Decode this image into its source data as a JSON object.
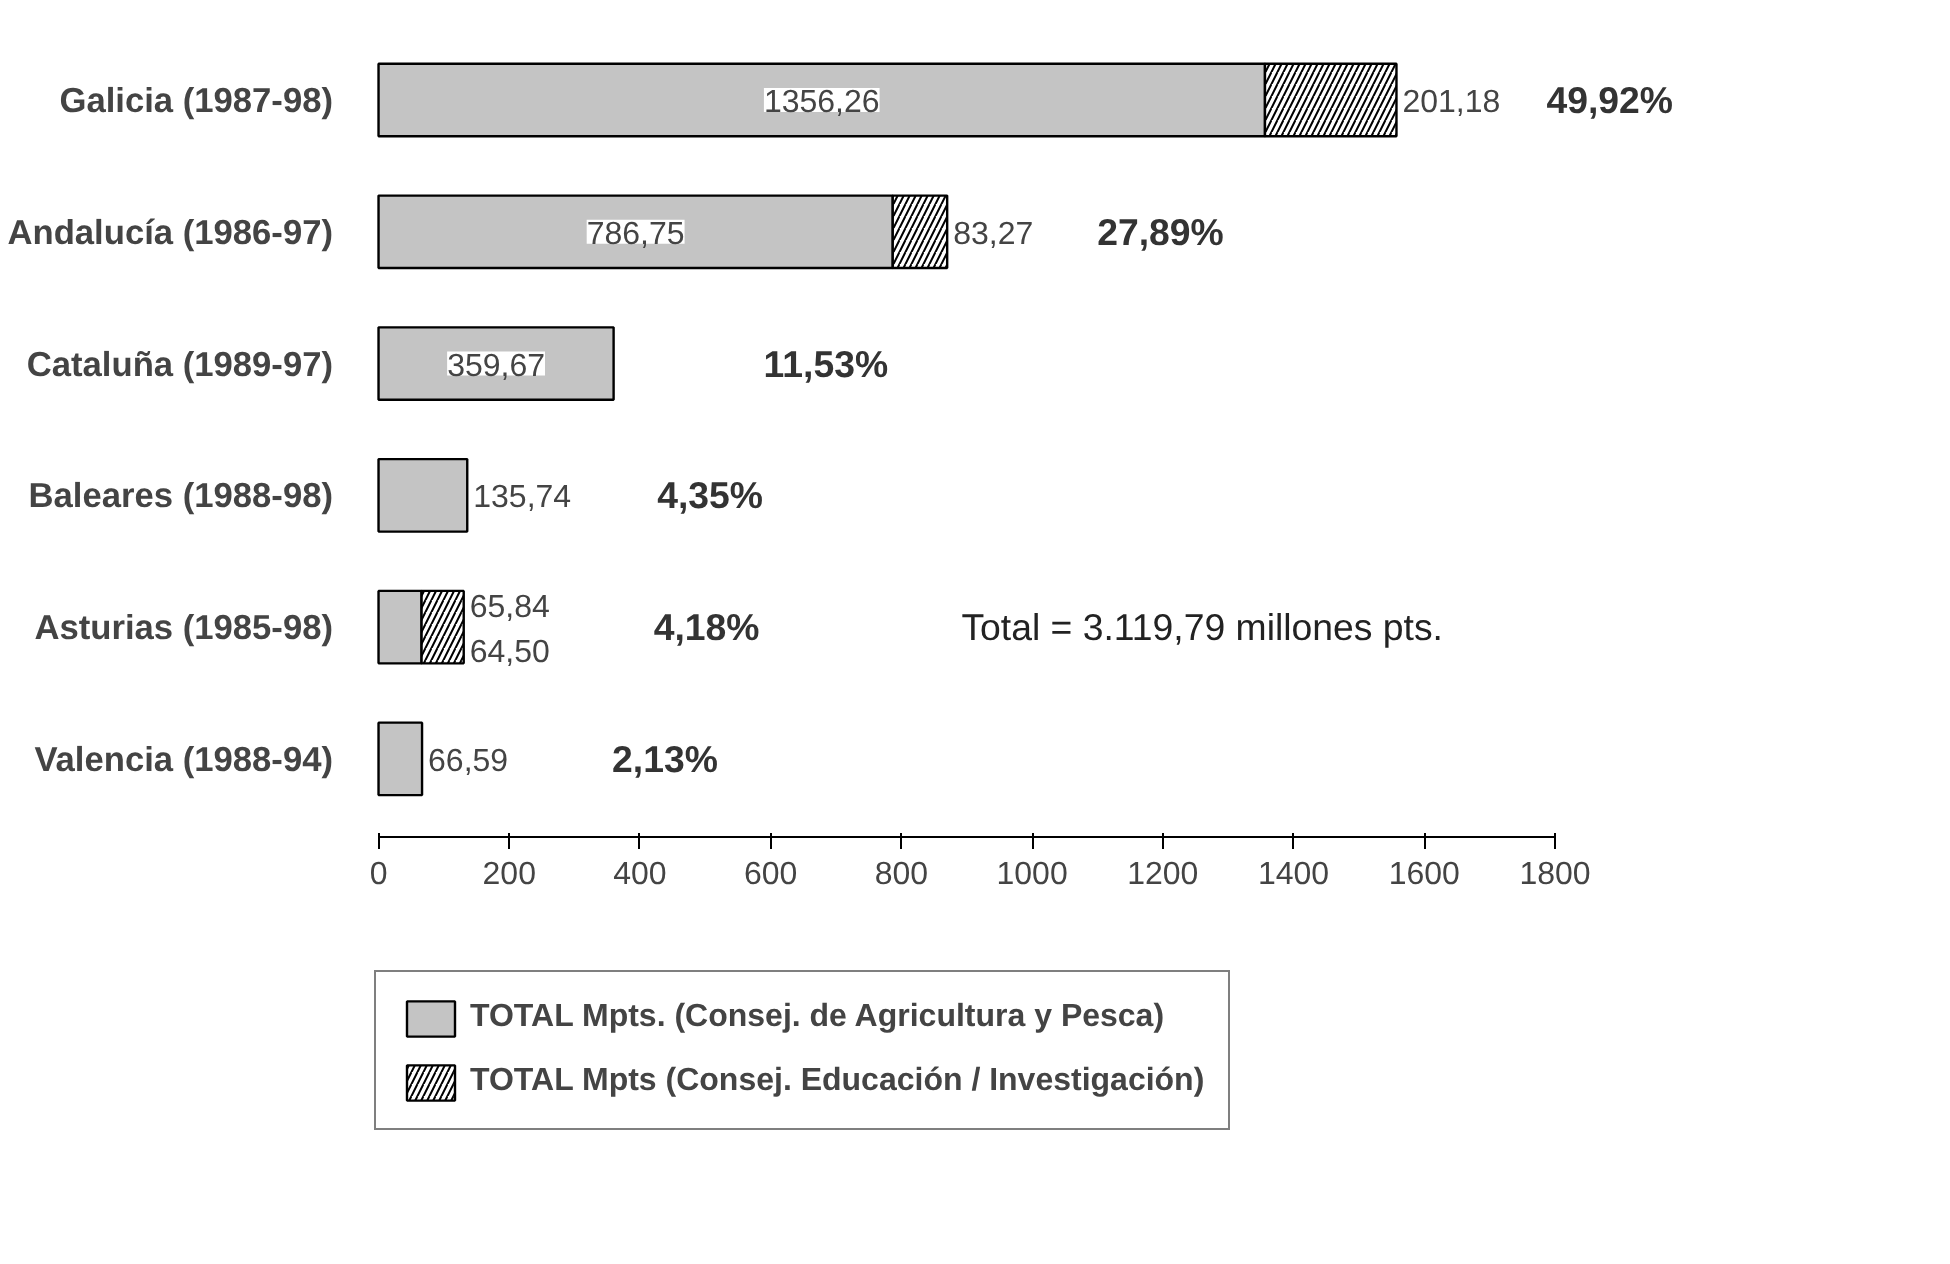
{
  "chart_data": {
    "type": "bar",
    "orientation": "horizontal",
    "stacked": true,
    "categories": [
      "Galicia (1987-98)",
      "Andalucía (1986-97)",
      "Cataluña (1989-97)",
      "Baleares (1988-98)",
      "Asturias (1985-98)",
      "Valencia (1988-94)"
    ],
    "series": [
      {
        "name": "TOTAL Mpts. (Consej. de Agricultura y Pesca)",
        "color": "#c4c4c4",
        "values": [
          1356.26,
          786.75,
          359.67,
          135.74,
          65.84,
          66.59
        ],
        "value_labels": [
          "1356,26",
          "786,75",
          "359,67",
          "135,74",
          "65,84",
          "66,59"
        ]
      },
      {
        "name": "TOTAL Mpts (Consej. Educación / Investigación)",
        "color": "#ffffff",
        "values": [
          201.18,
          83.27,
          null,
          null,
          64.5,
          null
        ],
        "value_labels": [
          "201,18",
          "83,27",
          null,
          null,
          "64,50",
          null
        ]
      }
    ],
    "xlim": [
      0,
      1800
    ],
    "xticks": [
      0,
      200,
      400,
      600,
      800,
      1000,
      1200,
      1400,
      1600,
      1800
    ],
    "grid": false,
    "legend": "bottom",
    "annotations": [
      "49,92%",
      "27,89%",
      "11,53%",
      "4,35%",
      "4,18%",
      "2,13%",
      "Total = 3.119,79 millones pts."
    ]
  }
}
